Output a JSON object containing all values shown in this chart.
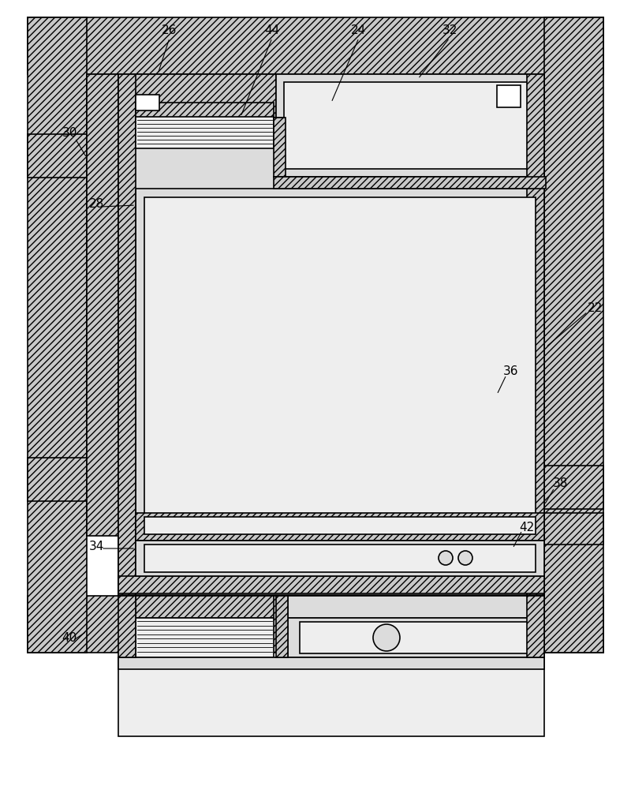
{
  "fig_width": 8.0,
  "fig_height": 9.96,
  "bg_color": "#ffffff",
  "hatch_dense": "////",
  "hatch_light": "//",
  "gray_dark": "#b0b0b0",
  "gray_med": "#c8c8c8",
  "gray_light": "#dcdcdc",
  "gray_vlight": "#eeeeee",
  "white": "#ffffff",
  "lw": 1.2
}
